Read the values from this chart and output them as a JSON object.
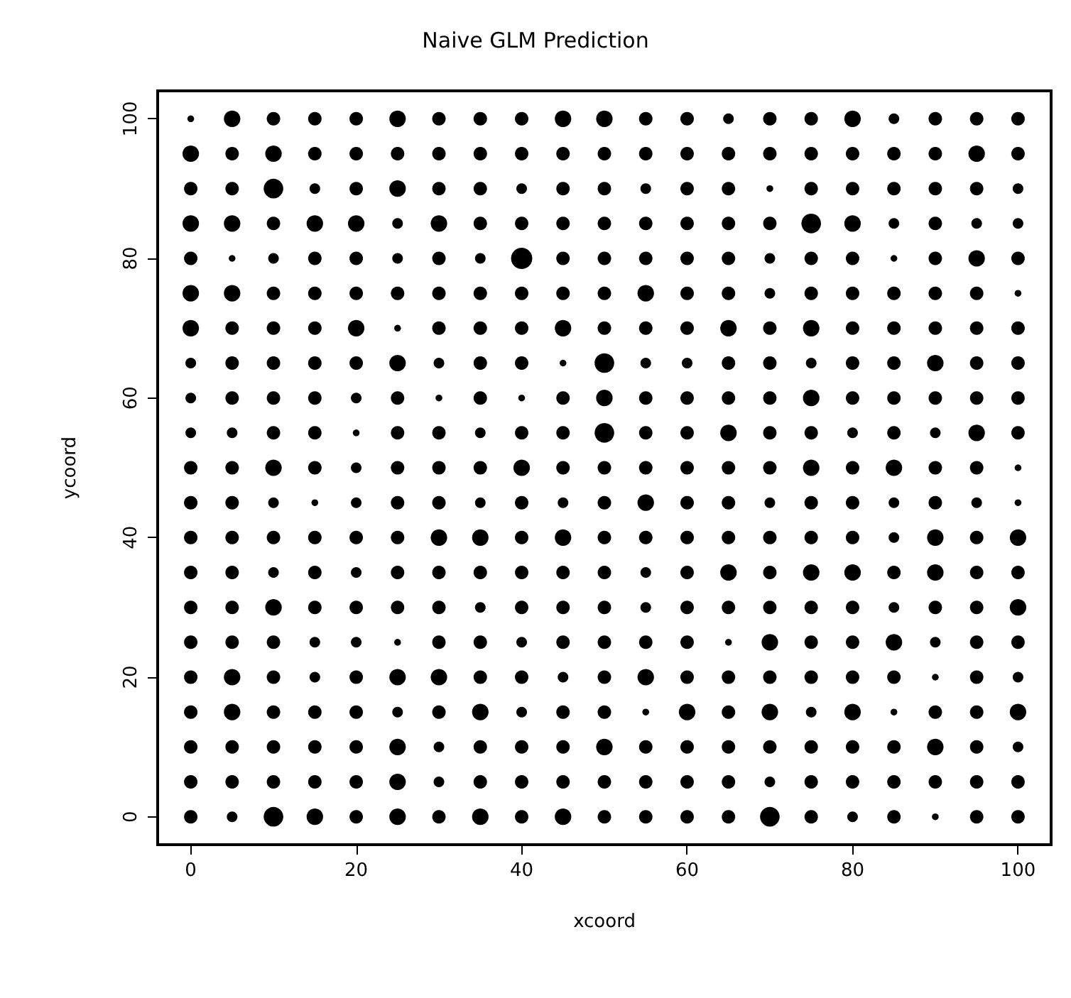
{
  "chart_data": {
    "type": "bubble",
    "title": "Naive GLM Prediction",
    "xlabel": "xcoord",
    "ylabel": "ycoord",
    "marker": "circle",
    "grid": false,
    "xlim": [
      -4,
      104
    ],
    "ylim": [
      -4,
      104
    ],
    "xticks": [
      0,
      20,
      40,
      60,
      80,
      100
    ],
    "yticks": [
      0,
      20,
      40,
      60,
      80,
      100
    ],
    "x": [
      0,
      5,
      10,
      15,
      20,
      25,
      30,
      35,
      40,
      45,
      50,
      55,
      60,
      65,
      70,
      75,
      80,
      85,
      90,
      95,
      100
    ],
    "series": [
      {
        "color": "#000000",
        "values": [
          100,
          100,
          100,
          100,
          100,
          100,
          100,
          100,
          100,
          100,
          100,
          100,
          100,
          100,
          100,
          100,
          100,
          100,
          100,
          100,
          100
        ],
        "sizes": [
          0.1,
          0.6,
          0.4,
          0.4,
          0.4,
          0.6,
          0.4,
          0.4,
          0.4,
          0.6,
          0.6,
          0.4,
          0.4,
          0.25,
          0.4,
          0.4,
          0.6,
          0.25,
          0.4,
          0.4,
          0.4
        ]
      },
      {
        "color": "#000000",
        "values": [
          95,
          95,
          95,
          95,
          95,
          95,
          95,
          95,
          95,
          95,
          95,
          95,
          95,
          95,
          95,
          95,
          95,
          95,
          95,
          95,
          95
        ],
        "sizes": [
          0.6,
          0.4,
          0.6,
          0.4,
          0.4,
          0.4,
          0.4,
          0.4,
          0.4,
          0.4,
          0.4,
          0.4,
          0.4,
          0.4,
          0.4,
          0.4,
          0.4,
          0.4,
          0.4,
          0.6,
          0.4
        ]
      },
      {
        "color": "#000000",
        "values": [
          90,
          90,
          90,
          90,
          90,
          90,
          90,
          90,
          90,
          90,
          90,
          90,
          90,
          90,
          90,
          90,
          90,
          90,
          90,
          90,
          90
        ],
        "sizes": [
          0.4,
          0.4,
          0.85,
          0.25,
          0.4,
          0.6,
          0.4,
          0.4,
          0.25,
          0.4,
          0.4,
          0.25,
          0.4,
          0.4,
          0.1,
          0.4,
          0.4,
          0.4,
          0.4,
          0.4,
          0.25
        ]
      },
      {
        "color": "#000000",
        "values": [
          85,
          85,
          85,
          85,
          85,
          85,
          85,
          85,
          85,
          85,
          85,
          85,
          85,
          85,
          85,
          85,
          85,
          85,
          85,
          85,
          85
        ],
        "sizes": [
          0.6,
          0.6,
          0.4,
          0.6,
          0.6,
          0.25,
          0.6,
          0.4,
          0.4,
          0.4,
          0.4,
          0.4,
          0.4,
          0.4,
          0.4,
          0.85,
          0.6,
          0.25,
          0.4,
          0.25,
          0.25
        ]
      },
      {
        "color": "#000000",
        "values": [
          80,
          80,
          80,
          80,
          80,
          80,
          80,
          80,
          80,
          80,
          80,
          80,
          80,
          80,
          80,
          80,
          80,
          80,
          80,
          80,
          80
        ],
        "sizes": [
          0.4,
          0.1,
          0.25,
          0.4,
          0.4,
          0.25,
          0.4,
          0.25,
          1,
          0.4,
          0.4,
          0.4,
          0.4,
          0.4,
          0.25,
          0.4,
          0.4,
          0.1,
          0.4,
          0.6,
          0.4
        ]
      },
      {
        "color": "#000000",
        "values": [
          75,
          75,
          75,
          75,
          75,
          75,
          75,
          75,
          75,
          75,
          75,
          75,
          75,
          75,
          75,
          75,
          75,
          75,
          75,
          75,
          75
        ],
        "sizes": [
          0.6,
          0.6,
          0.4,
          0.4,
          0.4,
          0.4,
          0.4,
          0.4,
          0.4,
          0.4,
          0.4,
          0.6,
          0.4,
          0.4,
          0.25,
          0.4,
          0.4,
          0.4,
          0.4,
          0.4,
          0.1
        ]
      },
      {
        "color": "#000000",
        "values": [
          70,
          70,
          70,
          70,
          70,
          70,
          70,
          70,
          70,
          70,
          70,
          70,
          70,
          70,
          70,
          70,
          70,
          70,
          70,
          70,
          70
        ],
        "sizes": [
          0.6,
          0.4,
          0.4,
          0.4,
          0.6,
          0.1,
          0.4,
          0.4,
          0.4,
          0.6,
          0.4,
          0.4,
          0.4,
          0.6,
          0.4,
          0.6,
          0.4,
          0.4,
          0.4,
          0.4,
          0.4
        ]
      },
      {
        "color": "#000000",
        "values": [
          65,
          65,
          65,
          65,
          65,
          65,
          65,
          65,
          65,
          65,
          65,
          65,
          65,
          65,
          65,
          65,
          65,
          65,
          65,
          65,
          65
        ],
        "sizes": [
          0.25,
          0.4,
          0.4,
          0.4,
          0.4,
          0.6,
          0.25,
          0.4,
          0.4,
          0.1,
          0.85,
          0.25,
          0.25,
          0.4,
          0.4,
          0.25,
          0.4,
          0.4,
          0.6,
          0.4,
          0.4
        ]
      },
      {
        "color": "#000000",
        "values": [
          60,
          60,
          60,
          60,
          60,
          60,
          60,
          60,
          60,
          60,
          60,
          60,
          60,
          60,
          60,
          60,
          60,
          60,
          60,
          60,
          60
        ],
        "sizes": [
          0.25,
          0.4,
          0.4,
          0.4,
          0.25,
          0.4,
          0.1,
          0.4,
          0.1,
          0.4,
          0.6,
          0.4,
          0.4,
          0.4,
          0.4,
          0.6,
          0.4,
          0.4,
          0.4,
          0.4,
          0.4
        ]
      },
      {
        "color": "#000000",
        "values": [
          55,
          55,
          55,
          55,
          55,
          55,
          55,
          55,
          55,
          55,
          55,
          55,
          55,
          55,
          55,
          55,
          55,
          55,
          55,
          55,
          55
        ],
        "sizes": [
          0.25,
          0.25,
          0.4,
          0.4,
          0.1,
          0.4,
          0.4,
          0.25,
          0.4,
          0.4,
          0.85,
          0.4,
          0.4,
          0.6,
          0.4,
          0.4,
          0.25,
          0.4,
          0.25,
          0.6,
          0.4
        ]
      },
      {
        "color": "#000000",
        "values": [
          50,
          50,
          50,
          50,
          50,
          50,
          50,
          50,
          50,
          50,
          50,
          50,
          50,
          50,
          50,
          50,
          50,
          50,
          50,
          50,
          50
        ],
        "sizes": [
          0.4,
          0.4,
          0.6,
          0.4,
          0.25,
          0.4,
          0.4,
          0.4,
          0.6,
          0.4,
          0.4,
          0.4,
          0.4,
          0.4,
          0.4,
          0.6,
          0.4,
          0.6,
          0.4,
          0.4,
          0.1
        ]
      },
      {
        "color": "#000000",
        "values": [
          45,
          45,
          45,
          45,
          45,
          45,
          45,
          45,
          45,
          45,
          45,
          45,
          45,
          45,
          45,
          45,
          45,
          45,
          45,
          45,
          45
        ],
        "sizes": [
          0.4,
          0.4,
          0.25,
          0.1,
          0.25,
          0.4,
          0.4,
          0.25,
          0.4,
          0.25,
          0.4,
          0.6,
          0.4,
          0.4,
          0.25,
          0.4,
          0.4,
          0.25,
          0.4,
          0.25,
          0.1
        ]
      },
      {
        "color": "#000000",
        "values": [
          40,
          40,
          40,
          40,
          40,
          40,
          40,
          40,
          40,
          40,
          40,
          40,
          40,
          40,
          40,
          40,
          40,
          40,
          40,
          40,
          40
        ],
        "sizes": [
          0.4,
          0.4,
          0.4,
          0.4,
          0.4,
          0.4,
          0.6,
          0.6,
          0.4,
          0.6,
          0.4,
          0.4,
          0.4,
          0.4,
          0.4,
          0.4,
          0.4,
          0.25,
          0.6,
          0.4,
          0.6
        ]
      },
      {
        "color": "#000000",
        "values": [
          35,
          35,
          35,
          35,
          35,
          35,
          35,
          35,
          35,
          35,
          35,
          35,
          35,
          35,
          35,
          35,
          35,
          35,
          35,
          35,
          35
        ],
        "sizes": [
          0.4,
          0.4,
          0.25,
          0.4,
          0.25,
          0.4,
          0.4,
          0.4,
          0.4,
          0.4,
          0.4,
          0.25,
          0.4,
          0.6,
          0.4,
          0.6,
          0.6,
          0.4,
          0.6,
          0.4,
          0.4
        ]
      },
      {
        "color": "#000000",
        "values": [
          30,
          30,
          30,
          30,
          30,
          30,
          30,
          30,
          30,
          30,
          30,
          30,
          30,
          30,
          30,
          30,
          30,
          30,
          30,
          30,
          30
        ],
        "sizes": [
          0.4,
          0.4,
          0.6,
          0.4,
          0.4,
          0.4,
          0.4,
          0.25,
          0.4,
          0.4,
          0.4,
          0.25,
          0.4,
          0.4,
          0.4,
          0.4,
          0.4,
          0.25,
          0.4,
          0.4,
          0.6
        ]
      },
      {
        "color": "#000000",
        "values": [
          25,
          25,
          25,
          25,
          25,
          25,
          25,
          25,
          25,
          25,
          25,
          25,
          25,
          25,
          25,
          25,
          25,
          25,
          25,
          25,
          25
        ],
        "sizes": [
          0.4,
          0.4,
          0.4,
          0.25,
          0.25,
          0.1,
          0.4,
          0.4,
          0.25,
          0.4,
          0.4,
          0.4,
          0.4,
          0.1,
          0.6,
          0.4,
          0.4,
          0.6,
          0.25,
          0.4,
          0.4
        ]
      },
      {
        "color": "#000000",
        "values": [
          20,
          20,
          20,
          20,
          20,
          20,
          20,
          20,
          20,
          20,
          20,
          20,
          20,
          20,
          20,
          20,
          20,
          20,
          20,
          20,
          20
        ],
        "sizes": [
          0.4,
          0.6,
          0.4,
          0.25,
          0.4,
          0.6,
          0.6,
          0.4,
          0.4,
          0.25,
          0.4,
          0.6,
          0.4,
          0.4,
          0.4,
          0.4,
          0.4,
          0.4,
          0.1,
          0.4,
          0.25
        ]
      },
      {
        "color": "#000000",
        "values": [
          15,
          15,
          15,
          15,
          15,
          15,
          15,
          15,
          15,
          15,
          15,
          15,
          15,
          15,
          15,
          15,
          15,
          15,
          15,
          15,
          15
        ],
        "sizes": [
          0.4,
          0.6,
          0.4,
          0.4,
          0.4,
          0.25,
          0.4,
          0.6,
          0.25,
          0.4,
          0.4,
          0.1,
          0.6,
          0.4,
          0.6,
          0.25,
          0.6,
          0.1,
          0.4,
          0.4,
          0.6
        ]
      },
      {
        "color": "#000000",
        "values": [
          10,
          10,
          10,
          10,
          10,
          10,
          10,
          10,
          10,
          10,
          10,
          10,
          10,
          10,
          10,
          10,
          10,
          10,
          10,
          10,
          10
        ],
        "sizes": [
          0.4,
          0.4,
          0.4,
          0.4,
          0.4,
          0.6,
          0.25,
          0.4,
          0.4,
          0.4,
          0.6,
          0.4,
          0.4,
          0.4,
          0.4,
          0.4,
          0.4,
          0.4,
          0.6,
          0.4,
          0.25
        ]
      },
      {
        "color": "#000000",
        "values": [
          5,
          5,
          5,
          5,
          5,
          5,
          5,
          5,
          5,
          5,
          5,
          5,
          5,
          5,
          5,
          5,
          5,
          5,
          5,
          5,
          5
        ],
        "sizes": [
          0.4,
          0.4,
          0.4,
          0.4,
          0.4,
          0.6,
          0.25,
          0.4,
          0.4,
          0.4,
          0.4,
          0.4,
          0.4,
          0.4,
          0.25,
          0.4,
          0.4,
          0.4,
          0.4,
          0.4,
          0.4
        ]
      },
      {
        "color": "#000000",
        "values": [
          0,
          0,
          0,
          0,
          0,
          0,
          0,
          0,
          0,
          0,
          0,
          0,
          0,
          0,
          0,
          0,
          0,
          0,
          0,
          0,
          0
        ],
        "sizes": [
          0.4,
          0.25,
          0.85,
          0.6,
          0.4,
          0.6,
          0.4,
          0.6,
          0.4,
          0.6,
          0.4,
          0.4,
          0.4,
          0.4,
          0.85,
          0.4,
          0.25,
          0.4,
          0.1,
          0.4,
          0.4
        ]
      }
    ]
  }
}
